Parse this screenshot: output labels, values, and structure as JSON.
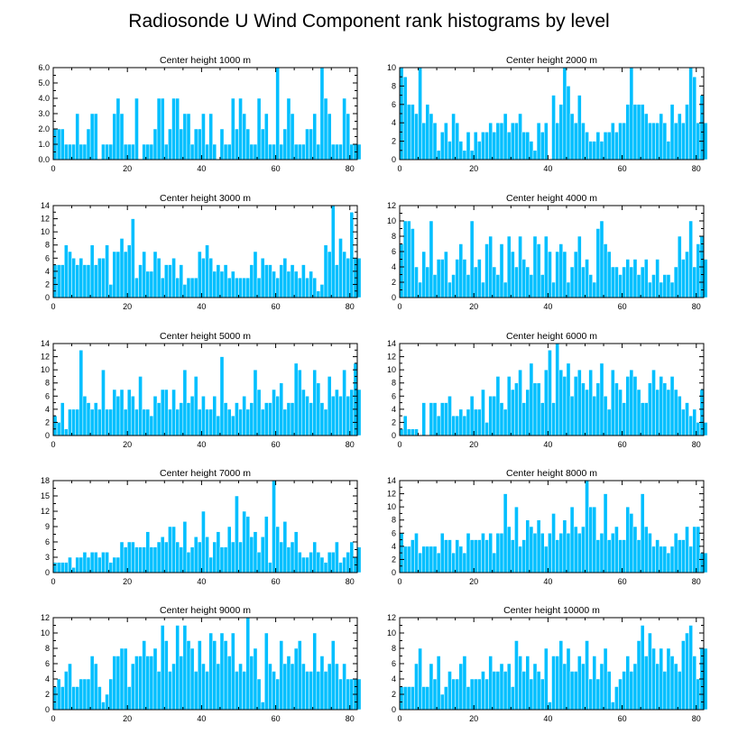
{
  "title": "Radiosonde U Wind Component rank histograms by level",
  "colors": {
    "bar": "#00bfff",
    "axis": "#000000",
    "background": "#ffffff"
  },
  "chart_data": [
    {
      "type": "bar",
      "title": "Center height 1000 m",
      "xlim": [
        0,
        82
      ],
      "ylim": [
        0,
        6
      ],
      "yticks": [
        "0.0",
        "1.0",
        "2.0",
        "3.0",
        "4.0",
        "5.0",
        "6.0"
      ],
      "ytick_values": [
        0,
        1,
        2,
        3,
        4,
        5,
        6
      ],
      "xticks": [
        0,
        20,
        40,
        60,
        80
      ],
      "values": [
        2,
        2,
        2,
        1,
        1,
        1,
        3,
        1,
        1,
        2,
        3,
        3,
        0,
        1,
        1,
        1,
        3,
        4,
        3,
        1,
        1,
        1,
        4,
        0,
        1,
        1,
        1,
        2,
        4,
        4,
        1,
        2,
        4,
        4,
        2,
        3,
        3,
        1,
        2,
        2,
        3,
        1,
        3,
        1,
        0,
        2,
        1,
        1,
        4,
        2,
        4,
        3,
        2,
        1,
        1,
        4,
        2,
        3,
        1,
        1,
        6,
        1,
        2,
        4,
        3,
        1,
        1,
        1,
        2,
        2,
        3,
        1,
        6,
        4,
        3,
        1,
        1,
        1,
        4,
        3,
        1,
        1,
        1
      ]
    },
    {
      "type": "bar",
      "title": "Center height 2000 m",
      "xlim": [
        0,
        82
      ],
      "ylim": [
        0,
        10
      ],
      "yticks": [
        "0",
        "2",
        "4",
        "6",
        "8",
        "10"
      ],
      "ytick_values": [
        0,
        2,
        4,
        6,
        8,
        10
      ],
      "xticks": [
        0,
        20,
        40,
        60,
        80
      ],
      "values": [
        10,
        9,
        6,
        6,
        5,
        10,
        4,
        6,
        5,
        4,
        1,
        3,
        4,
        2,
        5,
        4,
        2,
        1,
        3,
        1,
        3,
        2,
        3,
        3,
        4,
        3,
        4,
        4,
        5,
        3,
        4,
        4,
        5,
        3,
        3,
        2,
        1,
        4,
        3,
        4,
        0,
        7,
        4,
        6,
        10,
        8,
        5,
        4,
        7,
        4,
        3,
        2,
        2,
        3,
        2,
        3,
        3,
        4,
        3,
        4,
        4,
        6,
        10,
        6,
        6,
        6,
        5,
        4,
        4,
        4,
        5,
        4,
        2,
        6,
        4,
        5,
        4,
        6,
        10,
        9,
        4,
        7,
        4
      ]
    },
    {
      "type": "bar",
      "title": "Center height 3000 m",
      "xlim": [
        0,
        82
      ],
      "ylim": [
        0,
        14
      ],
      "yticks": [
        "0",
        "2",
        "4",
        "6",
        "8",
        "10",
        "12",
        "14"
      ],
      "ytick_values": [
        0,
        2,
        4,
        6,
        8,
        10,
        12,
        14
      ],
      "xticks": [
        0,
        20,
        40,
        60,
        80
      ],
      "values": [
        5,
        5,
        5,
        8,
        7,
        6,
        5,
        6,
        5,
        5,
        8,
        5,
        6,
        6,
        8,
        2,
        7,
        7,
        9,
        7,
        8,
        12,
        3,
        5,
        7,
        4,
        4,
        7,
        6,
        3,
        5,
        5,
        6,
        3,
        5,
        2,
        3,
        3,
        3,
        7,
        6,
        8,
        6,
        4,
        5,
        4,
        5,
        3,
        4,
        3,
        3,
        3,
        3,
        5,
        7,
        3,
        6,
        5,
        5,
        4,
        3,
        5,
        6,
        4,
        5,
        4,
        3,
        5,
        3,
        4,
        3,
        1,
        2,
        8,
        7,
        14,
        5,
        9,
        7,
        6,
        13,
        6,
        6
      ]
    },
    {
      "type": "bar",
      "title": "Center height 4000 m",
      "xlim": [
        0,
        82
      ],
      "ylim": [
        0,
        12
      ],
      "yticks": [
        "0",
        "2",
        "4",
        "6",
        "8",
        "10",
        "12"
      ],
      "ytick_values": [
        0,
        2,
        4,
        6,
        8,
        10,
        12
      ],
      "xticks": [
        0,
        20,
        40,
        60,
        80
      ],
      "values": [
        7,
        10,
        10,
        9,
        4,
        2,
        6,
        4,
        10,
        3,
        5,
        5,
        6,
        2,
        3,
        5,
        7,
        5,
        3,
        10,
        4,
        5,
        2,
        7,
        8,
        4,
        3,
        7,
        2,
        8,
        6,
        4,
        8,
        5,
        4,
        3,
        8,
        7,
        3,
        8,
        6,
        2,
        6,
        7,
        6,
        2,
        4,
        6,
        8,
        4,
        5,
        3,
        2,
        9,
        10,
        7,
        6,
        4,
        4,
        3,
        4,
        5,
        4,
        5,
        3,
        4,
        5,
        2,
        3,
        5,
        2,
        3,
        3,
        2,
        4,
        8,
        5,
        6,
        10,
        4,
        7,
        8,
        5
      ]
    },
    {
      "type": "bar",
      "title": "Center height 5000 m",
      "xlim": [
        0,
        82
      ],
      "ylim": [
        0,
        14
      ],
      "yticks": [
        "0",
        "2",
        "4",
        "6",
        "8",
        "10",
        "12",
        "14"
      ],
      "ytick_values": [
        0,
        2,
        4,
        6,
        8,
        10,
        12,
        14
      ],
      "xticks": [
        0,
        20,
        40,
        60,
        80
      ],
      "values": [
        3,
        2,
        5,
        1,
        4,
        4,
        4,
        13,
        6,
        5,
        4,
        5,
        4,
        10,
        4,
        4,
        7,
        6,
        7,
        4,
        7,
        6,
        4,
        9,
        4,
        4,
        3,
        6,
        5,
        7,
        7,
        4,
        7,
        4,
        5,
        10,
        5,
        6,
        9,
        4,
        6,
        4,
        4,
        6,
        3,
        12,
        5,
        4,
        3,
        5,
        4,
        6,
        4,
        5,
        10,
        7,
        4,
        5,
        5,
        7,
        6,
        8,
        4,
        5,
        5,
        11,
        10,
        7,
        6,
        5,
        10,
        8,
        5,
        4,
        9,
        6,
        7,
        6,
        10,
        6,
        7,
        11,
        7
      ]
    },
    {
      "type": "bar",
      "title": "Center height 6000 m",
      "xlim": [
        0,
        82
      ],
      "ylim": [
        0,
        14
      ],
      "yticks": [
        "0",
        "2",
        "4",
        "6",
        "8",
        "10",
        "12",
        "14"
      ],
      "ytick_values": [
        0,
        2,
        4,
        6,
        8,
        10,
        12,
        14
      ],
      "xticks": [
        0,
        20,
        40,
        60,
        80
      ],
      "values": [
        1,
        3,
        1,
        1,
        1,
        0,
        5,
        0,
        5,
        5,
        3,
        5,
        5,
        6,
        3,
        3,
        4,
        3,
        4,
        6,
        4,
        4,
        7,
        2,
        6,
        6,
        9,
        5,
        4,
        9,
        7,
        8,
        10,
        5,
        7,
        11,
        8,
        8,
        5,
        10,
        13,
        5,
        14,
        10,
        9,
        11,
        6,
        9,
        10,
        8,
        7,
        10,
        6,
        8,
        11,
        6,
        4,
        10,
        8,
        7,
        5,
        9,
        10,
        9,
        7,
        5,
        5,
        8,
        10,
        7,
        9,
        8,
        7,
        9,
        7,
        6,
        4,
        5,
        3,
        4,
        2,
        7,
        2
      ]
    },
    {
      "type": "bar",
      "title": "Center height 7000 m",
      "xlim": [
        0,
        82
      ],
      "ylim": [
        0,
        18
      ],
      "yticks": [
        "0",
        "3",
        "6",
        "9",
        "12",
        "15",
        "18"
      ],
      "ytick_values": [
        0,
        3,
        6,
        9,
        12,
        15,
        18
      ],
      "xticks": [
        0,
        20,
        40,
        60,
        80
      ],
      "values": [
        2,
        2,
        2,
        2,
        3,
        1,
        3,
        3,
        4,
        3,
        4,
        4,
        3,
        4,
        4,
        2,
        3,
        3,
        6,
        5,
        6,
        6,
        5,
        5,
        5,
        8,
        5,
        5,
        6,
        7,
        6,
        9,
        9,
        6,
        5,
        10,
        4,
        5,
        7,
        6,
        12,
        7,
        3,
        6,
        8,
        5,
        5,
        9,
        6,
        15,
        6,
        12,
        11,
        7,
        8,
        4,
        7,
        11,
        2,
        18,
        9,
        6,
        10,
        5,
        6,
        8,
        4,
        3,
        3,
        4,
        6,
        4,
        3,
        2,
        4,
        4,
        6,
        2,
        3,
        4,
        6,
        3,
        5
      ]
    },
    {
      "type": "bar",
      "title": "Center height 8000 m",
      "xlim": [
        0,
        82
      ],
      "ylim": [
        0,
        14
      ],
      "yticks": [
        "0",
        "2",
        "4",
        "6",
        "8",
        "10",
        "12",
        "14"
      ],
      "ytick_values": [
        0,
        2,
        4,
        6,
        8,
        10,
        12,
        14
      ],
      "xticks": [
        0,
        20,
        40,
        60,
        80
      ],
      "values": [
        6,
        4,
        4,
        5,
        6,
        3,
        4,
        4,
        4,
        4,
        3,
        6,
        5,
        5,
        3,
        5,
        4,
        3,
        6,
        5,
        5,
        5,
        6,
        5,
        6,
        3,
        6,
        6,
        12,
        7,
        5,
        10,
        4,
        5,
        8,
        7,
        6,
        8,
        6,
        4,
        6,
        9,
        5,
        6,
        8,
        6,
        10,
        7,
        6,
        7,
        14,
        10,
        10,
        5,
        6,
        12,
        5,
        6,
        7,
        5,
        5,
        10,
        9,
        7,
        5,
        12,
        7,
        6,
        4,
        5,
        4,
        4,
        3,
        4,
        6,
        5,
        5,
        7,
        4,
        7,
        7,
        3,
        3
      ]
    },
    {
      "type": "bar",
      "title": "Center height 9000 m",
      "xlim": [
        0,
        82
      ],
      "ylim": [
        0,
        12
      ],
      "yticks": [
        "0",
        "2",
        "4",
        "6",
        "8",
        "10",
        "12"
      ],
      "ytick_values": [
        0,
        2,
        4,
        6,
        8,
        10,
        12
      ],
      "xticks": [
        0,
        20,
        40,
        60,
        80
      ],
      "values": [
        3,
        4,
        3,
        5,
        6,
        3,
        3,
        4,
        4,
        4,
        7,
        6,
        3,
        1,
        2,
        4,
        7,
        7,
        8,
        8,
        3,
        6,
        7,
        7,
        9,
        7,
        7,
        8,
        5,
        11,
        9,
        5,
        6,
        11,
        7,
        11,
        9,
        8,
        5,
        9,
        6,
        5,
        10,
        9,
        6,
        10,
        9,
        7,
        10,
        5,
        6,
        5,
        12,
        7,
        8,
        4,
        1,
        10,
        6,
        5,
        4,
        9,
        6,
        7,
        6,
        8,
        9,
        6,
        5,
        5,
        10,
        5,
        7,
        5,
        6,
        9,
        6,
        4,
        6,
        4,
        4,
        4,
        4
      ]
    },
    {
      "type": "bar",
      "title": "Center height 10000 m",
      "xlim": [
        0,
        82
      ],
      "ylim": [
        0,
        12
      ],
      "yticks": [
        "0",
        "2",
        "4",
        "6",
        "8",
        "10",
        "12"
      ],
      "ytick_values": [
        0,
        2,
        4,
        6,
        8,
        10,
        12
      ],
      "xticks": [
        0,
        20,
        40,
        60,
        80
      ],
      "values": [
        3,
        3,
        3,
        3,
        6,
        8,
        3,
        3,
        6,
        4,
        7,
        2,
        3,
        5,
        4,
        4,
        6,
        7,
        3,
        4,
        4,
        4,
        5,
        4,
        7,
        5,
        5,
        6,
        5,
        6,
        3,
        9,
        7,
        5,
        7,
        4,
        6,
        5,
        4,
        8,
        1,
        7,
        7,
        9,
        6,
        8,
        5,
        5,
        7,
        6,
        9,
        4,
        7,
        4,
        6,
        8,
        5,
        1,
        3,
        4,
        5,
        7,
        5,
        6,
        9,
        11,
        7,
        10,
        8,
        6,
        8,
        5,
        8,
        7,
        6,
        5,
        9,
        10,
        11,
        7,
        4,
        8,
        8
      ]
    }
  ]
}
